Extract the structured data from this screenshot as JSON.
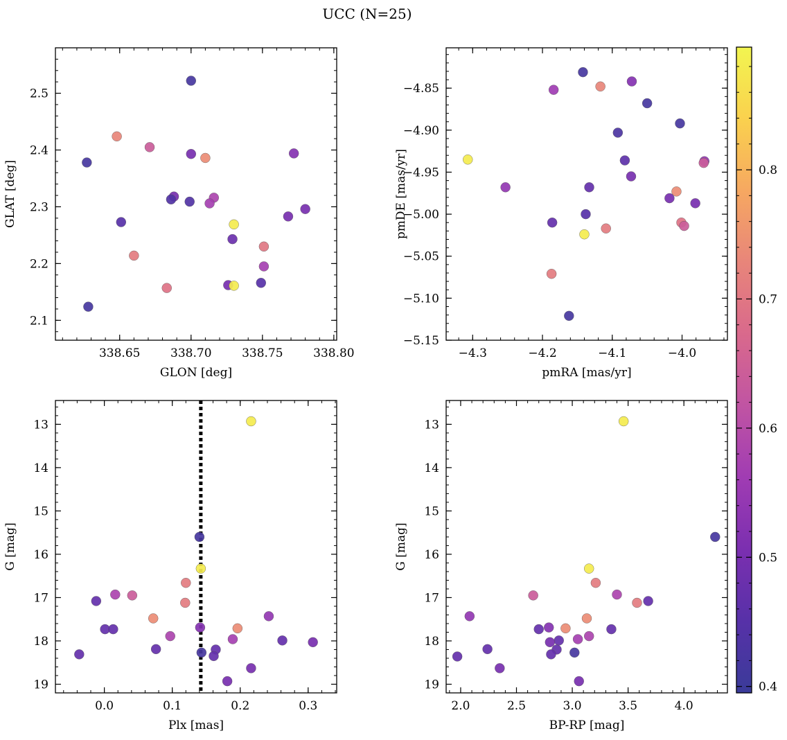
{
  "title": "UCC (N=25)",
  "colorbar": {
    "min": 0.395,
    "max": 0.895,
    "ticks": [
      0.4,
      0.5,
      0.6,
      0.7,
      0.8
    ],
    "tick_labels": [
      "0.4",
      "0.5",
      "0.6",
      "0.7",
      "0.8"
    ],
    "colormap": "plasma",
    "colormap_stops": [
      "#3a3b99",
      "#5731a8",
      "#7b2fb0",
      "#a03cb3",
      "#c054a3",
      "#d9698c",
      "#e8857a",
      "#f6a861",
      "#fad14e",
      "#f2f550"
    ]
  },
  "chart_data": [
    {
      "type": "scatter",
      "xlabel": "GLON [deg]",
      "ylabel": "GLAT [deg]",
      "xlim": [
        338.605,
        338.802
      ],
      "ylim": [
        2.065,
        2.58
      ],
      "xticks": [
        338.65,
        338.7,
        338.75,
        338.8
      ],
      "xtick_labels": [
        "338.65",
        "338.70",
        "338.75",
        "338.80"
      ],
      "yticks": [
        2.1,
        2.2,
        2.3,
        2.4,
        2.5
      ],
      "ytick_labels": [
        "2.1",
        "2.2",
        "2.3",
        "2.4",
        "2.5"
      ],
      "points": [
        {
          "x": 338.7,
          "y": 2.522,
          "c": 0.42
        },
        {
          "x": 338.648,
          "y": 2.424,
          "c": 0.73
        },
        {
          "x": 338.671,
          "y": 2.405,
          "c": 0.64
        },
        {
          "x": 338.7,
          "y": 2.393,
          "c": 0.5
        },
        {
          "x": 338.71,
          "y": 2.386,
          "c": 0.74
        },
        {
          "x": 338.772,
          "y": 2.394,
          "c": 0.52
        },
        {
          "x": 338.627,
          "y": 2.378,
          "c": 0.42
        },
        {
          "x": 338.688,
          "y": 2.318,
          "c": 0.5
        },
        {
          "x": 338.686,
          "y": 2.313,
          "c": 0.44
        },
        {
          "x": 338.716,
          "y": 2.316,
          "c": 0.58
        },
        {
          "x": 338.699,
          "y": 2.309,
          "c": 0.44
        },
        {
          "x": 338.713,
          "y": 2.306,
          "c": 0.57
        },
        {
          "x": 338.78,
          "y": 2.296,
          "c": 0.5
        },
        {
          "x": 338.768,
          "y": 2.283,
          "c": 0.5
        },
        {
          "x": 338.651,
          "y": 2.273,
          "c": 0.45
        },
        {
          "x": 338.73,
          "y": 2.269,
          "c": 0.88
        },
        {
          "x": 338.729,
          "y": 2.243,
          "c": 0.48
        },
        {
          "x": 338.751,
          "y": 2.23,
          "c": 0.7
        },
        {
          "x": 338.66,
          "y": 2.214,
          "c": 0.71
        },
        {
          "x": 338.751,
          "y": 2.195,
          "c": 0.57
        },
        {
          "x": 338.749,
          "y": 2.166,
          "c": 0.45
        },
        {
          "x": 338.726,
          "y": 2.162,
          "c": 0.5
        },
        {
          "x": 338.73,
          "y": 2.161,
          "c": 0.88
        },
        {
          "x": 338.683,
          "y": 2.157,
          "c": 0.69
        },
        {
          "x": 338.628,
          "y": 2.124,
          "c": 0.42
        }
      ]
    },
    {
      "type": "scatter",
      "xlabel": "pmRA [mas/yr]",
      "ylabel": "pmDE [mas/yr]",
      "xlim": [
        -4.338,
        -3.935
      ],
      "ylim": [
        -5.15,
        -4.802
      ],
      "xticks": [
        -4.3,
        -4.2,
        -4.1,
        -4.0
      ],
      "xtick_labels": [
        "−4.3",
        "−4.2",
        "−4.1",
        "−4.0"
      ],
      "yticks": [
        -5.15,
        -5.1,
        -5.05,
        -5.0,
        -4.95,
        -4.9,
        -4.85
      ],
      "ytick_labels": [
        "−5.15",
        "−5.10",
        "−5.05",
        "−5.00",
        "−4.95",
        "−4.90",
        "−4.85"
      ],
      "points": [
        {
          "x": -4.142,
          "y": -4.831,
          "c": 0.42
        },
        {
          "x": -4.117,
          "y": -4.848,
          "c": 0.73
        },
        {
          "x": -4.184,
          "y": -4.852,
          "c": 0.56
        },
        {
          "x": -4.072,
          "y": -4.842,
          "c": 0.52
        },
        {
          "x": -4.05,
          "y": -4.868,
          "c": 0.42
        },
        {
          "x": -4.003,
          "y": -4.892,
          "c": 0.42
        },
        {
          "x": -4.092,
          "y": -4.903,
          "c": 0.43
        },
        {
          "x": -4.307,
          "y": -4.935,
          "c": 0.88
        },
        {
          "x": -4.082,
          "y": -4.936,
          "c": 0.46
        },
        {
          "x": -3.968,
          "y": -4.937,
          "c": 0.54
        },
        {
          "x": -3.969,
          "y": -4.939,
          "c": 0.64
        },
        {
          "x": -4.073,
          "y": -4.955,
          "c": 0.5
        },
        {
          "x": -4.253,
          "y": -4.968,
          "c": 0.54
        },
        {
          "x": -4.133,
          "y": -4.968,
          "c": 0.47
        },
        {
          "x": -4.008,
          "y": -4.973,
          "c": 0.74
        },
        {
          "x": -4.018,
          "y": -4.981,
          "c": 0.5
        },
        {
          "x": -3.981,
          "y": -4.987,
          "c": 0.5
        },
        {
          "x": -4.138,
          "y": -5.0,
          "c": 0.45
        },
        {
          "x": -4.186,
          "y": -5.01,
          "c": 0.47
        },
        {
          "x": -4.001,
          "y": -5.01,
          "c": 0.69
        },
        {
          "x": -3.997,
          "y": -5.014,
          "c": 0.64
        },
        {
          "x": -4.109,
          "y": -5.017,
          "c": 0.71
        },
        {
          "x": -4.14,
          "y": -5.024,
          "c": 0.88
        },
        {
          "x": -4.187,
          "y": -5.071,
          "c": 0.71
        },
        {
          "x": -4.162,
          "y": -5.121,
          "c": 0.42
        }
      ]
    },
    {
      "type": "scatter",
      "xlabel": "Plx [mas]",
      "ylabel": "G [mag]",
      "xlim": [
        -0.072,
        0.342
      ],
      "ylim": [
        19.2,
        12.45
      ],
      "xticks": [
        0.0,
        0.1,
        0.2,
        0.3
      ],
      "xtick_labels": [
        "0.0",
        "0.1",
        "0.2",
        "0.3"
      ],
      "yticks": [
        13,
        14,
        15,
        16,
        17,
        18,
        19
      ],
      "ytick_labels": [
        "13",
        "14",
        "15",
        "16",
        "17",
        "18",
        "19"
      ],
      "vline": {
        "x": 0.142,
        "style": "dotted",
        "color": "#000000"
      },
      "points": [
        {
          "x": 0.216,
          "y": 12.93,
          "c": 0.88
        },
        {
          "x": 0.14,
          "y": 15.6,
          "c": 0.42
        },
        {
          "x": 0.142,
          "y": 16.33,
          "c": 0.88
        },
        {
          "x": 0.12,
          "y": 16.66,
          "c": 0.71
        },
        {
          "x": 0.016,
          "y": 16.93,
          "c": 0.58
        },
        {
          "x": 0.041,
          "y": 16.95,
          "c": 0.64
        },
        {
          "x": -0.012,
          "y": 17.08,
          "c": 0.47
        },
        {
          "x": 0.119,
          "y": 17.12,
          "c": 0.71
        },
        {
          "x": 0.242,
          "y": 17.43,
          "c": 0.54
        },
        {
          "x": 0.072,
          "y": 17.48,
          "c": 0.74
        },
        {
          "x": 0.141,
          "y": 17.69,
          "c": 0.52
        },
        {
          "x": 0.196,
          "y": 17.71,
          "c": 0.74
        },
        {
          "x": 0.001,
          "y": 17.73,
          "c": 0.47
        },
        {
          "x": 0.013,
          "y": 17.73,
          "c": 0.47
        },
        {
          "x": 0.097,
          "y": 17.89,
          "c": 0.58
        },
        {
          "x": 0.189,
          "y": 17.96,
          "c": 0.57
        },
        {
          "x": 0.262,
          "y": 17.99,
          "c": 0.47
        },
        {
          "x": 0.307,
          "y": 18.03,
          "c": 0.5
        },
        {
          "x": 0.076,
          "y": 18.19,
          "c": 0.47
        },
        {
          "x": 0.164,
          "y": 18.2,
          "c": 0.47
        },
        {
          "x": 0.143,
          "y": 18.27,
          "c": 0.42
        },
        {
          "x": -0.037,
          "y": 18.31,
          "c": 0.47
        },
        {
          "x": 0.161,
          "y": 18.35,
          "c": 0.47
        },
        {
          "x": 0.216,
          "y": 18.63,
          "c": 0.5
        },
        {
          "x": 0.181,
          "y": 18.93,
          "c": 0.5
        }
      ]
    },
    {
      "type": "scatter",
      "xlabel": "BP-RP [mag]",
      "ylabel": "G [mag]",
      "xlim": [
        1.87,
        4.39
      ],
      "ylim": [
        19.2,
        12.45
      ],
      "xticks": [
        2.0,
        2.5,
        3.0,
        3.5,
        4.0
      ],
      "xtick_labels": [
        "2.0",
        "2.5",
        "3.0",
        "3.5",
        "4.0"
      ],
      "yticks": [
        13,
        14,
        15,
        16,
        17,
        18,
        19
      ],
      "ytick_labels": [
        "13",
        "14",
        "15",
        "16",
        "17",
        "18",
        "19"
      ],
      "points": [
        {
          "x": 3.46,
          "y": 12.93,
          "c": 0.88
        },
        {
          "x": 4.28,
          "y": 15.6,
          "c": 0.42
        },
        {
          "x": 3.15,
          "y": 16.33,
          "c": 0.88
        },
        {
          "x": 3.21,
          "y": 16.66,
          "c": 0.71
        },
        {
          "x": 3.4,
          "y": 16.93,
          "c": 0.58
        },
        {
          "x": 2.65,
          "y": 16.95,
          "c": 0.64
        },
        {
          "x": 3.68,
          "y": 17.08,
          "c": 0.47
        },
        {
          "x": 3.58,
          "y": 17.12,
          "c": 0.71
        },
        {
          "x": 2.08,
          "y": 17.43,
          "c": 0.54
        },
        {
          "x": 3.13,
          "y": 17.48,
          "c": 0.74
        },
        {
          "x": 2.79,
          "y": 17.69,
          "c": 0.52
        },
        {
          "x": 2.94,
          "y": 17.71,
          "c": 0.74
        },
        {
          "x": 2.7,
          "y": 17.73,
          "c": 0.47
        },
        {
          "x": 3.35,
          "y": 17.73,
          "c": 0.47
        },
        {
          "x": 3.15,
          "y": 17.89,
          "c": 0.58
        },
        {
          "x": 3.05,
          "y": 17.96,
          "c": 0.57
        },
        {
          "x": 2.88,
          "y": 17.99,
          "c": 0.47
        },
        {
          "x": 2.8,
          "y": 18.03,
          "c": 0.5
        },
        {
          "x": 2.24,
          "y": 18.19,
          "c": 0.47
        },
        {
          "x": 2.86,
          "y": 18.2,
          "c": 0.47
        },
        {
          "x": 3.02,
          "y": 18.27,
          "c": 0.42
        },
        {
          "x": 1.97,
          "y": 18.36,
          "c": 0.47
        },
        {
          "x": 2.81,
          "y": 18.31,
          "c": 0.47
        },
        {
          "x": 2.35,
          "y": 18.63,
          "c": 0.5
        },
        {
          "x": 3.06,
          "y": 18.93,
          "c": 0.5
        }
      ]
    }
  ]
}
